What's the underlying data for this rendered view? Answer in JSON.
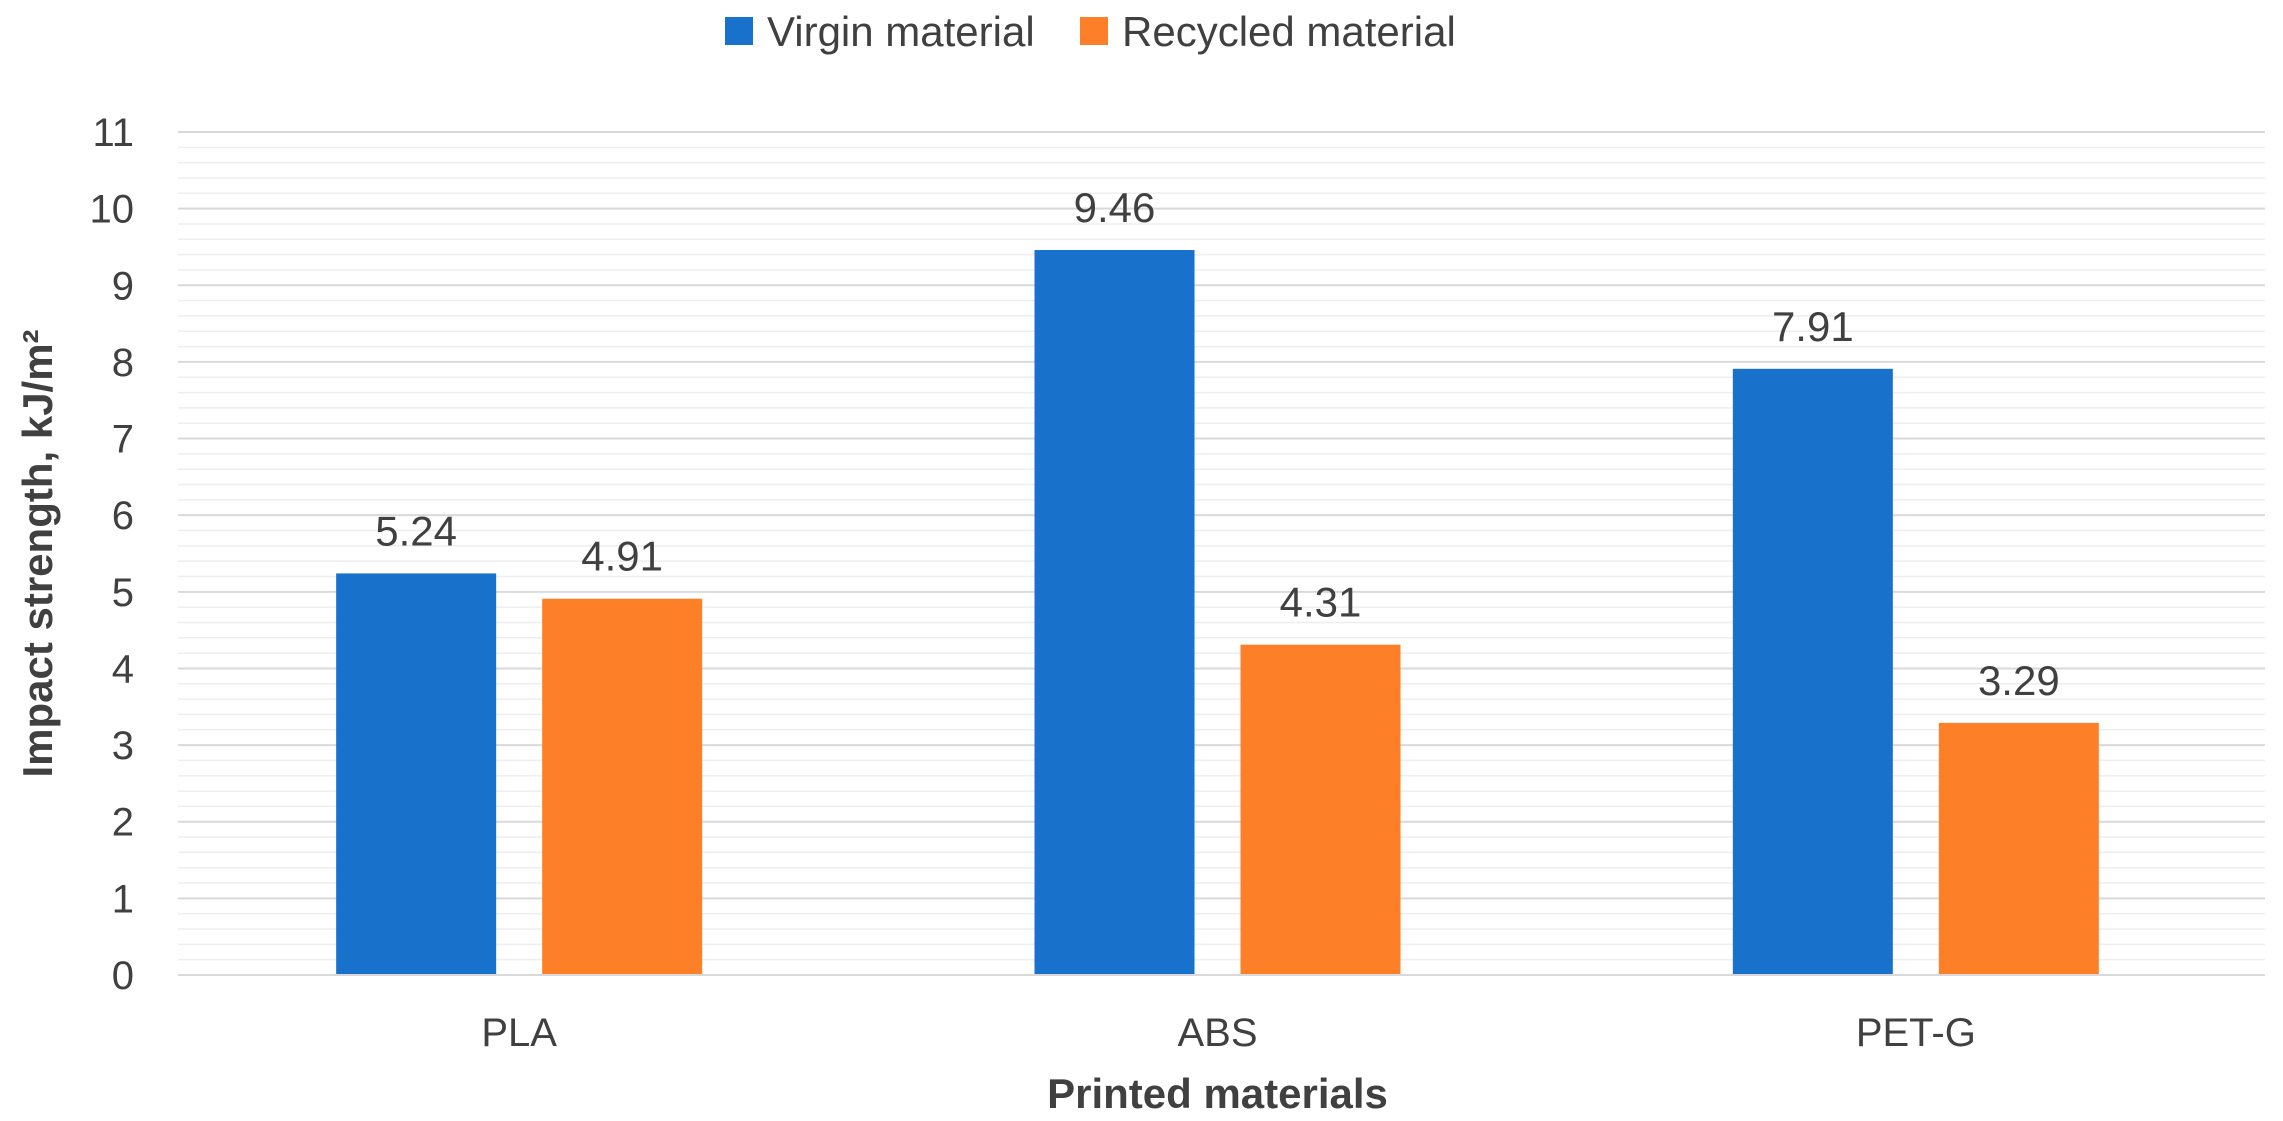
{
  "chart_data": {
    "type": "bar",
    "categories": [
      "PLA",
      "ABS",
      "PET-G"
    ],
    "series": [
      {
        "name": "Virgin material",
        "color": "#1872CB",
        "values": [
          5.24,
          9.46,
          7.91
        ]
      },
      {
        "name": "Recycled material",
        "color": "#FD7F27",
        "values": [
          4.91,
          4.31,
          3.29
        ]
      }
    ],
    "data_labels": [
      [
        "5.24",
        "9.46",
        "7.91"
      ],
      [
        "4.91",
        "4.31",
        "3.29"
      ]
    ],
    "xlabel": "Printed materials",
    "ylabel": "Impact strength, kJ/m²",
    "ylim": [
      0,
      11
    ],
    "yticks": [
      "0",
      "1",
      "2",
      "3",
      "4",
      "5",
      "6",
      "7",
      "8",
      "9",
      "10",
      "11"
    ],
    "grid": true,
    "legend": "top-center"
  }
}
